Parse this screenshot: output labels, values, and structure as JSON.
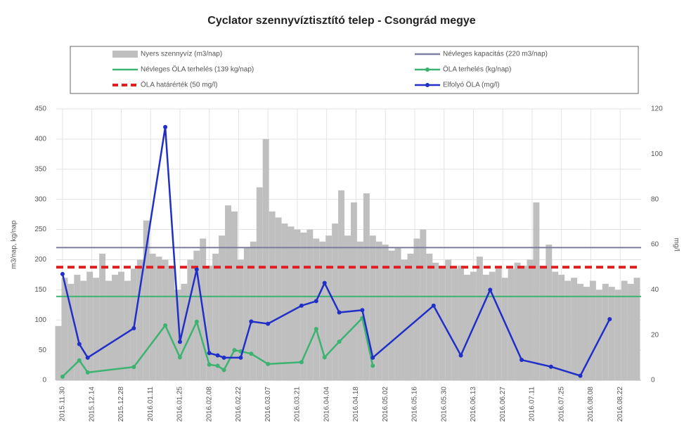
{
  "chart_data": {
    "type": "combo",
    "title": "Cyclator szennyvíztisztító telep - Csongrád megye",
    "ylabel": "m3/nap, kg/nap",
    "y2label": "mg/l",
    "xlim": [
      "2015.11.27",
      "2016.09.01"
    ],
    "xticks": [
      "2015.11.30",
      "2015.12.14",
      "2015.12.28",
      "2016.01.11",
      "2016.01.25",
      "2016.02.08",
      "2016.02.22",
      "2016.03.07",
      "2016.03.21",
      "2016.04.04",
      "2016.04.18",
      "2016.05.02",
      "2016.05.16",
      "2016.05.30",
      "2016.06.13",
      "2016.06.27",
      "2016.07.11",
      "2016.07.25",
      "2016.08.08",
      "2016.08.22"
    ],
    "ylim": [
      0,
      450
    ],
    "yticks": [
      0,
      50,
      100,
      150,
      200,
      250,
      300,
      350,
      400,
      450
    ],
    "y2lim": [
      0,
      120
    ],
    "y2ticks": [
      0,
      20,
      40,
      60,
      80,
      100,
      120
    ],
    "grid": true,
    "series": [
      {
        "name": "Nyers szennyvíz (m3/nap)",
        "type": "bar",
        "color": "#bfbfbf",
        "x": [
          "2015.11.28",
          "2015.12.01",
          "2015.12.04",
          "2015.12.07",
          "2015.12.10",
          "2015.12.13",
          "2015.12.16",
          "2015.12.19",
          "2015.12.22",
          "2015.12.25",
          "2015.12.28",
          "2015.12.31",
          "2016.01.03",
          "2016.01.06",
          "2016.01.09",
          "2016.01.12",
          "2016.01.15",
          "2016.01.18",
          "2016.01.21",
          "2016.01.24",
          "2016.01.27",
          "2016.01.30",
          "2016.02.02",
          "2016.02.05",
          "2016.02.08",
          "2016.02.11",
          "2016.02.14",
          "2016.02.17",
          "2016.02.20",
          "2016.02.23",
          "2016.02.26",
          "2016.02.29",
          "2016.03.03",
          "2016.03.06",
          "2016.03.09",
          "2016.03.12",
          "2016.03.15",
          "2016.03.18",
          "2016.03.21",
          "2016.03.24",
          "2016.03.27",
          "2016.03.30",
          "2016.04.02",
          "2016.04.05",
          "2016.04.08",
          "2016.04.11",
          "2016.04.14",
          "2016.04.17",
          "2016.04.20",
          "2016.04.23",
          "2016.04.26",
          "2016.04.29",
          "2016.05.02",
          "2016.05.05",
          "2016.05.08",
          "2016.05.11",
          "2016.05.14",
          "2016.05.17",
          "2016.05.20",
          "2016.05.23",
          "2016.05.26",
          "2016.05.29",
          "2016.06.01",
          "2016.06.04",
          "2016.06.07",
          "2016.06.10",
          "2016.06.13",
          "2016.06.16",
          "2016.06.19",
          "2016.06.22",
          "2016.06.25",
          "2016.06.28",
          "2016.07.01",
          "2016.07.04",
          "2016.07.07",
          "2016.07.10",
          "2016.07.13",
          "2016.07.16",
          "2016.07.19",
          "2016.07.22",
          "2016.07.25",
          "2016.07.28",
          "2016.07.31",
          "2016.08.03",
          "2016.08.06",
          "2016.08.09",
          "2016.08.12",
          "2016.08.15",
          "2016.08.18",
          "2016.08.21",
          "2016.08.24",
          "2016.08.27",
          "2016.08.30"
        ],
        "values": [
          90,
          170,
          160,
          175,
          165,
          180,
          170,
          210,
          165,
          175,
          180,
          165,
          185,
          200,
          265,
          210,
          205,
          200,
          190,
          150,
          160,
          200,
          215,
          235,
          190,
          210,
          240,
          290,
          280,
          200,
          220,
          230,
          320,
          400,
          280,
          270,
          260,
          255,
          250,
          245,
          250,
          235,
          230,
          240,
          260,
          315,
          240,
          295,
          230,
          310,
          240,
          230,
          225,
          215,
          220,
          200,
          210,
          235,
          250,
          210,
          195,
          190,
          200,
          185,
          190,
          175,
          180,
          205,
          175,
          180,
          185,
          170,
          185,
          195,
          190,
          200,
          295,
          190,
          225,
          180,
          175,
          165,
          170,
          160,
          155,
          165,
          150,
          160,
          155,
          150,
          165,
          160,
          170
        ]
      },
      {
        "name": "Névleges kapacitás (220 m3/nap)",
        "type": "hline",
        "color": "#7f7f9f",
        "value": 220
      },
      {
        "name": "Névleges ÖLA terhelés (139 kg/nap)",
        "type": "hline",
        "color": "#3cb371",
        "value": 139
      },
      {
        "name": "ÖLA terhelés (kg/nap)",
        "type": "line",
        "color": "#3cb371",
        "x": [
          "2015.11.30",
          "2015.12.08",
          "2015.12.12",
          "2016.01.03",
          "2016.01.18",
          "2016.01.25",
          "2016.02.02",
          "2016.02.08",
          "2016.02.12",
          "2016.02.15",
          "2016.02.20",
          "2016.02.23",
          "2016.02.28",
          "2016.03.07",
          "2016.03.23",
          "2016.03.30",
          "2016.04.03",
          "2016.04.10",
          "2016.04.21",
          "2016.04.26"
        ],
        "values": [
          6,
          33,
          13,
          22,
          91,
          38,
          97,
          26,
          24,
          17,
          50,
          48,
          44,
          27,
          30,
          85,
          38,
          64,
          103,
          24
        ]
      },
      {
        "name": "ÖLA határérték (50 mg/l)",
        "type": "hline",
        "color": "#e02020",
        "dashed": true,
        "axis": "y2",
        "value": 50
      },
      {
        "name": "Elfolyó ÖLA (mg/l)",
        "type": "line",
        "color": "#1f2fc8",
        "axis": "y2",
        "x": [
          "2015.11.30",
          "2015.12.08",
          "2015.12.12",
          "2016.01.03",
          "2016.01.18",
          "2016.01.25",
          "2016.02.02",
          "2016.02.08",
          "2016.02.12",
          "2016.02.15",
          "2016.02.23",
          "2016.02.28",
          "2016.03.07",
          "2016.03.23",
          "2016.03.30",
          "2016.04.03",
          "2016.04.10",
          "2016.04.21",
          "2016.04.26",
          "2016.05.25",
          "2016.06.07",
          "2016.06.21",
          "2016.07.06",
          "2016.07.20",
          "2016.08.03",
          "2016.08.17"
        ],
        "values": [
          47,
          16,
          10,
          23,
          112,
          17,
          49,
          12,
          11,
          10,
          10,
          26,
          25,
          33,
          35,
          43,
          30,
          31,
          10,
          33,
          11,
          40,
          9,
          6,
          2,
          27
        ]
      }
    ]
  }
}
